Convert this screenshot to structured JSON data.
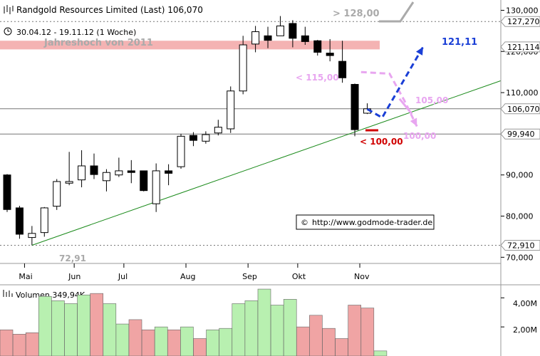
{
  "header": {
    "title": "Randgold Resources Limited (Last) 106,070",
    "period": "30.04.12 - 19.11.12 (1 Woche)"
  },
  "annotations": {
    "jahreshoch": "Jahreshoch von 2011",
    "target_top": "> 128,00",
    "upper_target": "121,11",
    "lt_115": "< 115,00",
    "level_105": "105,00",
    "level_100": "100,00",
    "lt_100": "< 100,00",
    "low_label": "72,91",
    "copyright": "http://www.godmode-trader.de",
    "copyright_symbol": "©"
  },
  "volume": {
    "label": "Volumen 349,94K",
    "ticks": [
      "4,00M",
      "2,00M"
    ]
  },
  "colors": {
    "up": "#ffffff",
    "down": "#000000",
    "resistance_band": "#f4b3b3",
    "trendline": "#1a8a1a",
    "blue_projection": "#1a3fd6",
    "pink_projection": "#e8a6f0",
    "red": "#d00000",
    "vol_up": "#b8f0b0",
    "vol_down": "#f0a4a4"
  },
  "chart_data": {
    "type": "candlestick",
    "y_axis": {
      "ticks": [
        "70,000",
        "80,000",
        "90,000",
        "100,000",
        "110,000",
        "120,000",
        "130,000"
      ],
      "tick_values": [
        70,
        80,
        90,
        100,
        110,
        120,
        130
      ],
      "ylim": [
        68.5,
        132.5
      ],
      "markers": [
        {
          "label": "127,270",
          "value": 127.27
        },
        {
          "label": "121,114",
          "value": 121.114
        },
        {
          "label": "106,070",
          "value": 106.07
        },
        {
          "label": "99,940",
          "value": 99.94
        },
        {
          "label": "72,910",
          "value": 72.91
        }
      ]
    },
    "x_axis": {
      "months": [
        "Mai",
        "Jun",
        "Jul",
        "Aug",
        "Sep",
        "Okt",
        "Nov"
      ]
    },
    "candles": [
      {
        "o": 90.0,
        "h": 90.2,
        "c": 81.6,
        "l": 81.0
      },
      {
        "o": 82.0,
        "h": 82.5,
        "c": 75.6,
        "l": 74.5
      },
      {
        "o": 74.8,
        "h": 77.6,
        "c": 75.8,
        "l": 72.9
      },
      {
        "o": 76.0,
        "h": 82.2,
        "c": 82.0,
        "l": 75.0
      },
      {
        "o": 82.4,
        "h": 89.0,
        "c": 88.4,
        "l": 81.5
      },
      {
        "o": 88.0,
        "h": 95.6,
        "c": 88.4,
        "l": 87.5
      },
      {
        "o": 88.8,
        "h": 96.0,
        "c": 92.2,
        "l": 87.0
      },
      {
        "o": 92.2,
        "h": 95.2,
        "c": 90.1,
        "l": 89.0
      },
      {
        "o": 88.6,
        "h": 91.4,
        "c": 90.6,
        "l": 86.0
      },
      {
        "o": 90.0,
        "h": 94.2,
        "c": 91.0,
        "l": 89.5
      },
      {
        "o": 91.0,
        "h": 93.6,
        "c": 90.6,
        "l": 88.0
      },
      {
        "o": 91.0,
        "h": 91.0,
        "c": 86.2,
        "l": 86.0
      },
      {
        "o": 83.0,
        "h": 92.8,
        "c": 91.0,
        "l": 81.0
      },
      {
        "o": 91.0,
        "h": 92.6,
        "c": 90.4,
        "l": 87.5
      },
      {
        "o": 92.0,
        "h": 100.0,
        "c": 99.4,
        "l": 91.5
      },
      {
        "o": 99.6,
        "h": 100.4,
        "c": 98.4,
        "l": 97.0
      },
      {
        "o": 98.2,
        "h": 100.6,
        "c": 99.8,
        "l": 97.6
      },
      {
        "o": 100.2,
        "h": 103.4,
        "c": 101.6,
        "l": 99.6
      },
      {
        "o": 101.2,
        "h": 111.5,
        "c": 110.4,
        "l": 100.2
      },
      {
        "o": 110.4,
        "h": 123.8,
        "c": 121.6,
        "l": 109.6
      },
      {
        "o": 121.8,
        "h": 126.2,
        "c": 124.8,
        "l": 119.8
      },
      {
        "o": 123.8,
        "h": 126.0,
        "c": 122.7,
        "l": 120.8
      },
      {
        "o": 123.8,
        "h": 128.6,
        "c": 126.2,
        "l": 124.0
      },
      {
        "o": 126.8,
        "h": 127.6,
        "c": 123.2,
        "l": 121.0
      },
      {
        "o": 123.8,
        "h": 126.0,
        "c": 122.4,
        "l": 121.6
      },
      {
        "o": 122.6,
        "h": 122.8,
        "c": 119.8,
        "l": 119.0
      },
      {
        "o": 119.6,
        "h": 123.0,
        "c": 119.0,
        "l": 117.6
      },
      {
        "o": 117.6,
        "h": 122.6,
        "c": 113.6,
        "l": 112.4
      },
      {
        "o": 112.0,
        "h": 112.2,
        "c": 101.0,
        "l": 99.4
      },
      {
        "o": 105.0,
        "h": 107.4,
        "c": 106.07,
        "l": 104.8
      }
    ],
    "volume_values": [
      1.8,
      1.5,
      1.6,
      4.1,
      3.8,
      3.6,
      4.2,
      4.3,
      3.6,
      2.2,
      2.5,
      1.8,
      2.0,
      1.8,
      2.0,
      1.2,
      1.8,
      1.9,
      3.6,
      3.8,
      4.6,
      3.5,
      3.9,
      2.0,
      2.8,
      1.9,
      1.2,
      3.5,
      3.3,
      0.35
    ],
    "volume_up": [
      false,
      false,
      false,
      true,
      true,
      true,
      true,
      false,
      true,
      true,
      false,
      false,
      true,
      false,
      true,
      false,
      true,
      true,
      true,
      true,
      true,
      true,
      true,
      false,
      false,
      false,
      false,
      false,
      false,
      true
    ],
    "volume_ylim": [
      0,
      4.7
    ],
    "resistance_zone": [
      120.5,
      122.6
    ],
    "trendline": {
      "from": {
        "index": 2,
        "value": 72.91
      },
      "to": {
        "index": 29,
        "value": 101.5
      }
    },
    "blue_projection": [
      {
        "index": 29,
        "value": 106.0
      },
      {
        "index": 30.2,
        "value": 103.9
      },
      {
        "index": 33.5,
        "value": 121.11
      }
    ],
    "pink_projection": [
      {
        "index": 28.5,
        "value": 115.0
      },
      {
        "index": 30.8,
        "value": 114.6
      },
      {
        "index": 32.0,
        "value": 108.0
      },
      {
        "index": 33.0,
        "value": 101.8
      }
    ],
    "hlines": [
      127.27,
      106.07,
      99.94,
      72.91
    ]
  }
}
